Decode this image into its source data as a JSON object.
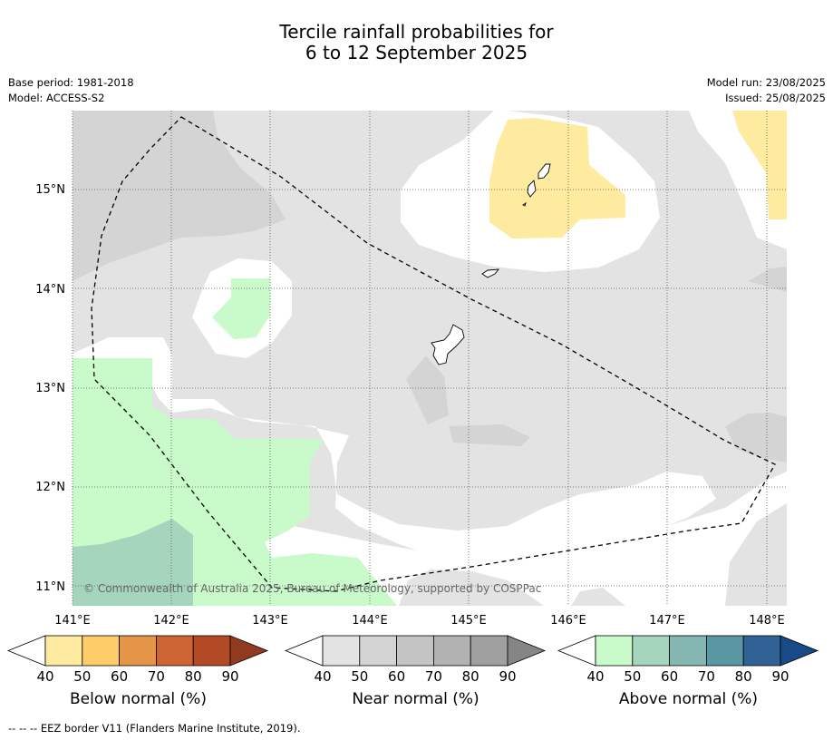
{
  "title_line1": "Tercile rainfall probabilities for",
  "title_line2": "6 to 12 September 2025",
  "base_period": "Base period: 1981-2018",
  "model": "Model: ACCESS-S2",
  "model_run": "Model run: 23/08/2025",
  "issued": "Issued: 25/08/2025",
  "copyright": "© Commonwealth of Australia 2025, Bureau of Meteorology, supported by COSPPac",
  "footnote": "--  --  -- EEZ border V11 (Flanders Marine Institute, 2019).",
  "lon_ticks": [
    "141°E",
    "142°E",
    "143°E",
    "144°E",
    "145°E",
    "146°E",
    "147°E",
    "148°E"
  ],
  "lat_ticks": [
    "15°N",
    "14°N",
    "13°N",
    "12°N",
    "11°N"
  ],
  "colorbars": [
    {
      "label": "Below normal (%)",
      "ticks": [
        "40",
        "50",
        "60",
        "70",
        "80",
        "90"
      ],
      "colors": [
        "#ffffff",
        "#feeb9f",
        "#fecd67",
        "#e49548",
        "#cd6434",
        "#b34a26",
        "#913a20"
      ]
    },
    {
      "label": "Near normal (%)",
      "ticks": [
        "40",
        "50",
        "60",
        "70",
        "80",
        "90"
      ],
      "colors": [
        "#ffffff",
        "#e3e3e3",
        "#d4d4d4",
        "#c4c4c4",
        "#b2b2b2",
        "#a0a0a0",
        "#858585"
      ]
    },
    {
      "label": "Above normal (%)",
      "ticks": [
        "40",
        "50",
        "60",
        "70",
        "80",
        "90"
      ],
      "colors": [
        "#ffffff",
        "#c9fac9",
        "#a5d5bd",
        "#84b7b1",
        "#5b97a3",
        "#316295",
        "#174a86"
      ]
    }
  ]
}
